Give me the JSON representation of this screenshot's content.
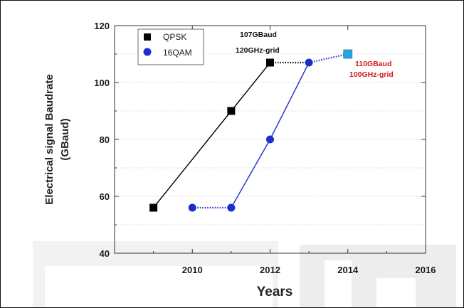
{
  "chart_data": {
    "type": "line",
    "title": "",
    "xlabel": "Years",
    "ylabel_line1": "Electrical signal Baudrate",
    "ylabel_line2": "(GBaud)",
    "xlim": [
      2008,
      2016
    ],
    "ylim": [
      40,
      120
    ],
    "xticks": [
      2010,
      2012,
      2014,
      2016
    ],
    "yticks": [
      40,
      60,
      80,
      100,
      120
    ],
    "grid": "horizontal-dotted",
    "legend_placement": "top-left",
    "series": [
      {
        "name": "QPSK",
        "color": "#000000",
        "marker": "square",
        "solid_segment": {
          "x": [
            2009,
            2011,
            2012
          ],
          "y": [
            56,
            90,
            107
          ]
        },
        "dotted_segment": {
          "x": [
            2012,
            2013
          ],
          "y": [
            107,
            107
          ]
        }
      },
      {
        "name": "16QAM",
        "color": "#1f2ccf",
        "marker": "circle",
        "dotted_segment_1": {
          "x": [
            2010,
            2011
          ],
          "y": [
            56,
            56
          ]
        },
        "solid_segment": {
          "x": [
            2011,
            2012,
            2013
          ],
          "y": [
            56,
            80,
            107
          ]
        },
        "dotted_segment_2": {
          "x": [
            2013,
            2014
          ],
          "y": [
            107,
            110
          ]
        }
      }
    ],
    "extra_points": [
      {
        "marker": "square-blue",
        "color": "#2aa3e0",
        "x": 2014,
        "y": 110
      }
    ],
    "annotations": [
      {
        "id": "anno-107-line1",
        "text": "107GBaud",
        "color": "#111111"
      },
      {
        "id": "anno-107-line2",
        "text": "120GHz-grid",
        "color": "#111111"
      },
      {
        "id": "anno-110-line1",
        "text": "110GBaud",
        "color": "#d11a1a"
      },
      {
        "id": "anno-110-line2",
        "text": "100GHz-grid",
        "color": "#d11a1a"
      }
    ]
  },
  "colors": {
    "qpsk": "#000000",
    "qam16": "#1f2ccf",
    "highlight_square": "#2aa3e0",
    "red_annotation": "#d11a1a",
    "background_deco": "#e4e4e4"
  }
}
